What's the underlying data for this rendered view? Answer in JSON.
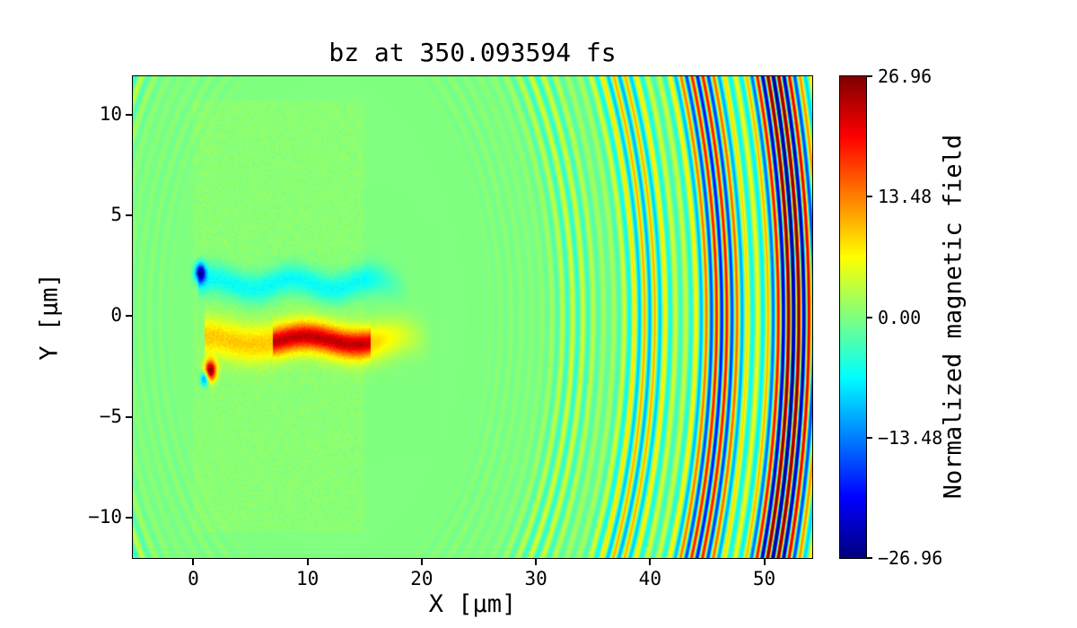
{
  "figure": {
    "title": "bz at 350.093594 fs",
    "xlabel": "X [μm]",
    "ylabel": "Y [μm]",
    "colorbar_label": "Normalized magnetic field"
  },
  "chart_data": {
    "type": "heatmap",
    "title": "bz at 350.093594 fs",
    "field": "bz",
    "time_fs": 350.093594,
    "xlabel": "X [μm]",
    "ylabel": "Y [μm]",
    "xlim": [
      -5.3,
      54.2
    ],
    "ylim": [
      -12.0,
      11.9
    ],
    "x_ticks": [
      0,
      10,
      20,
      30,
      40,
      50
    ],
    "x_tick_labels": [
      "0",
      "10",
      "20",
      "30",
      "40",
      "50"
    ],
    "y_ticks": [
      10,
      5,
      0,
      -5,
      -10
    ],
    "y_tick_labels": [
      "10",
      "5",
      "0",
      "−5",
      "−10"
    ],
    "colormap": "jet",
    "vmin": -26.96,
    "vmax": 26.96,
    "colorbar_ticks": [
      26.96,
      13.48,
      0,
      -13.48,
      -26.96
    ],
    "colorbar_tick_labels": [
      "26.96",
      "13.48",
      "0.00",
      "−13.48",
      "−26.96"
    ],
    "colorbar_label": "Normalized magnetic field",
    "grid": false,
    "description": "2D map of normalized magnetic field bz from a laser-plasma simulation: near-zero (green) background; a speckled plasma slab spanning x≈0–15 μm, |y|<10.7 μm; a negative (cyan) filament near y≈+1.6 μm and a positive (yellow-orange) filament near y≈−1.2 μm extending to x≈20 μm; intense localized spots near the target front (blue at ≈(0.6,2.1), red at ≈(1.5,−2.7)); and concentric outgoing wavefronts of alternating positive/negative field whose amplitude grows toward x≈55 μm, saturating the ±26.96 color scale.",
    "render": {
      "wave": {
        "center_x": 12,
        "center_y": 0,
        "wavelength": 0.9,
        "r_start": 12,
        "r_full": 40,
        "amp_max": 30,
        "beat_period": 6.5,
        "beat_depth": 0.38
      },
      "plasma_box": {
        "x0": 0,
        "x1": 15,
        "y0": -10.7,
        "y1": 10.7,
        "tint": 0.6,
        "noise": 1.4
      },
      "channel_top": {
        "y": 1.6,
        "x0": 0.4,
        "x1": 19,
        "half_width": 0.75,
        "value": -7,
        "wiggle": 0.25
      },
      "channel_bottom": {
        "y": -1.2,
        "x0": 1,
        "x1": 21,
        "half_width": 0.95,
        "value": 9,
        "hot_x0": 7,
        "hot_x1": 15.5,
        "hot_value": 14,
        "hot_half_width": 0.6,
        "wiggle": 0.2
      },
      "blob_blue": {
        "x": 0.6,
        "y": 2.15,
        "r": 0.45,
        "value": -25
      },
      "blob_red": {
        "x": 1.5,
        "y": -2.7,
        "r": 0.5,
        "value": 27
      },
      "blob_dark": {
        "x": 1.0,
        "y": -3.1,
        "r": 0.35,
        "value": -16
      }
    }
  }
}
